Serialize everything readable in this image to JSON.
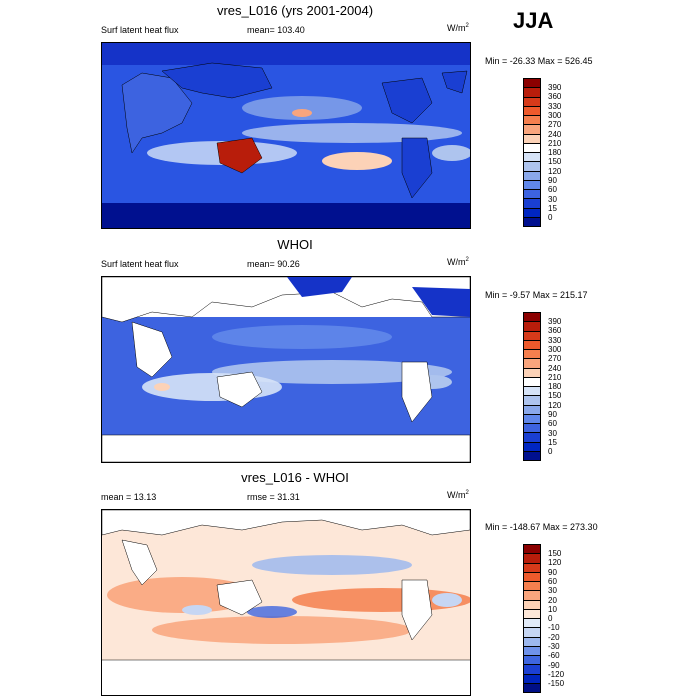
{
  "season": "JJA",
  "panels": [
    {
      "title": "vres_L016 (yrs 2001-2004)",
      "left_label": "Surf latent heat flux",
      "center_label": "mean= 103.40",
      "units_base": "W/m",
      "units_exp": "2",
      "minmax": "Min = -26.33 Max = 526.45",
      "colorbar_ticks": [
        "390",
        "360",
        "330",
        "300",
        "270",
        "240",
        "210",
        "180",
        "150",
        "120",
        "90",
        "60",
        "30",
        "15",
        "0"
      ]
    },
    {
      "title": "WHOI",
      "left_label": "Surf latent heat flux",
      "center_label": "mean=  90.26",
      "units_base": "W/m",
      "units_exp": "2",
      "minmax": "Min =  -9.57 Max = 215.17",
      "colorbar_ticks": [
        "390",
        "360",
        "330",
        "300",
        "270",
        "240",
        "210",
        "180",
        "150",
        "120",
        "90",
        "60",
        "30",
        "15",
        "0"
      ]
    },
    {
      "title": "vres_L016 - WHOI",
      "left_label": "mean =  13.13",
      "center_label": "rmse =  31.31",
      "units_base": "W/m",
      "units_exp": "2",
      "minmax": "Min = -148.67 Max = 273.30",
      "colorbar_ticks": [
        "150",
        "120",
        "90",
        "60",
        "30",
        "20",
        "10",
        "0",
        "-10",
        "-20",
        "-30",
        "-60",
        "-90",
        "-120",
        "-150"
      ]
    }
  ],
  "colors": {
    "full_scale": [
      "#8b0000",
      "#b81d0b",
      "#d63a1a",
      "#ee5a2c",
      "#f57f4e",
      "#f9a57d",
      "#fcd2b7",
      "#ffffff",
      "#d6e3f7",
      "#aec4ee",
      "#8aa8ea",
      "#6087ea",
      "#3d63e0",
      "#1a3fd2",
      "#0026c2",
      "#00108f"
    ],
    "diff_scale": [
      "#8b0000",
      "#b81d0b",
      "#d63a1a",
      "#ee5a2c",
      "#f57f4e",
      "#f9a57d",
      "#fcd2b7",
      "#fde7d8",
      "#e2ebf8",
      "#c6d6f3",
      "#9db8ee",
      "#6f92ea",
      "#3f66e0",
      "#1c40d3",
      "#0024bd",
      "#000f86"
    ],
    "land_white": "#ffffff",
    "coast": "#000000"
  }
}
